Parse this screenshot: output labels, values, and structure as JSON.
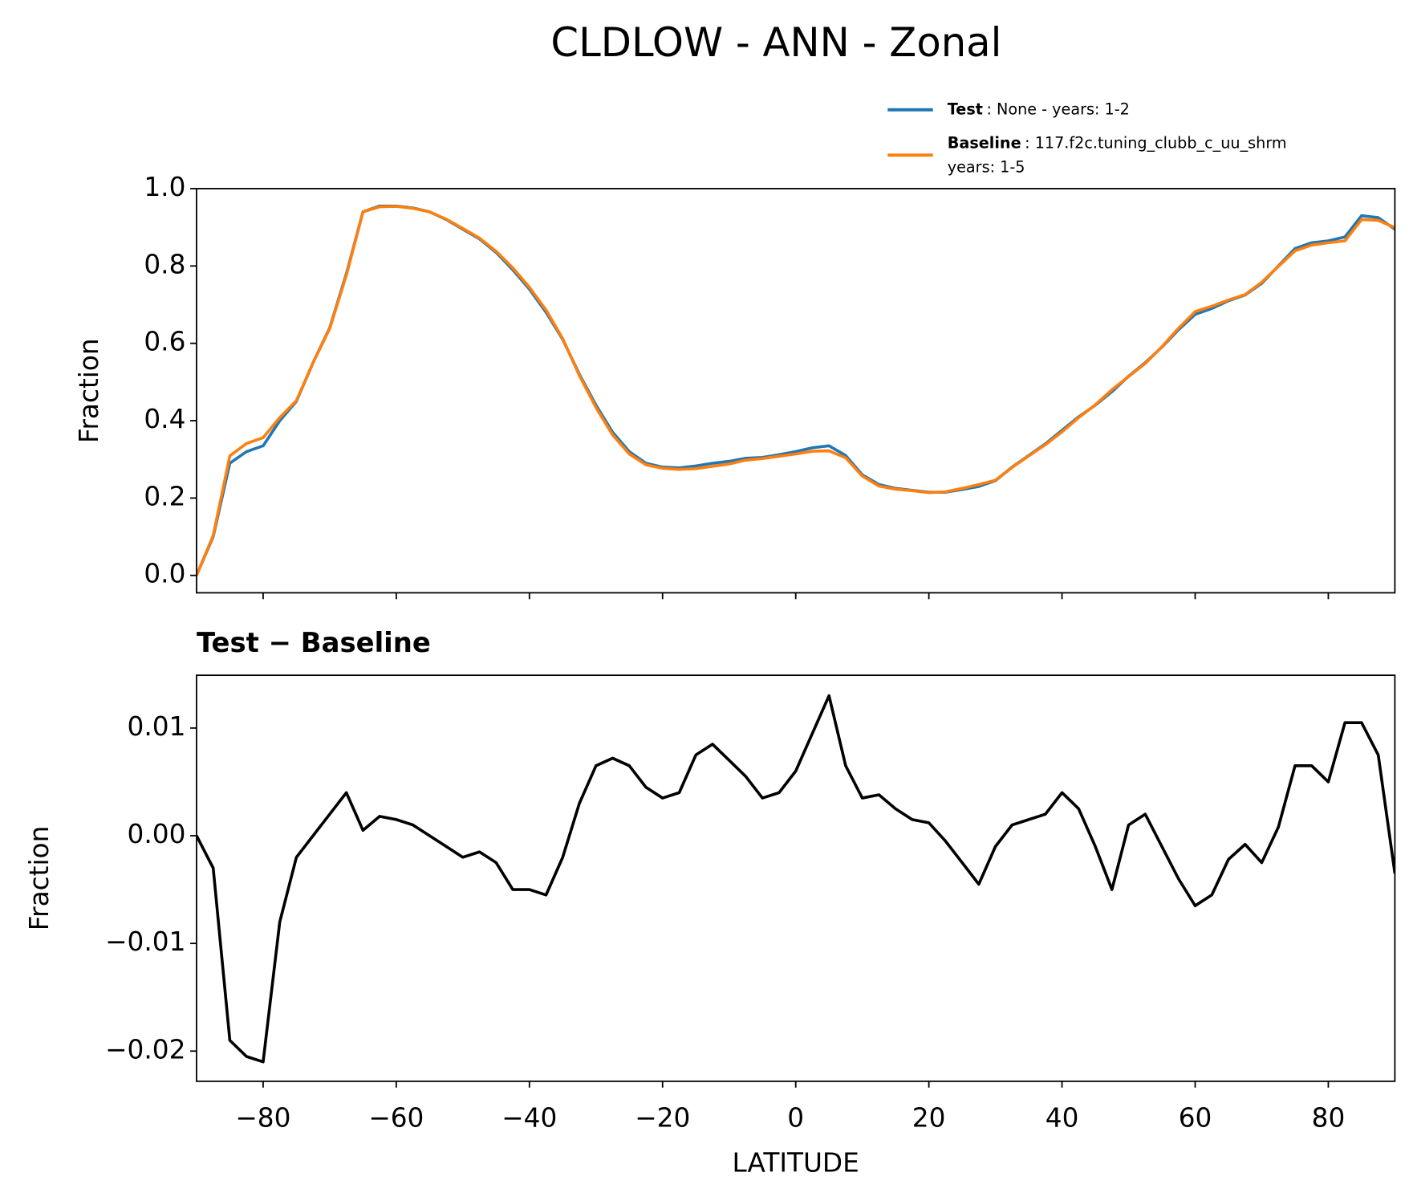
{
  "title": "CLDLOW - ANN - Zonal",
  "chart_data": [
    {
      "type": "line",
      "y_label": "Fraction",
      "x": [
        -90,
        -87.5,
        -85,
        -82.5,
        -80,
        -77.5,
        -75,
        -72.5,
        -70,
        -67.5,
        -65,
        -62.5,
        -60,
        -57.5,
        -55,
        -52.5,
        -50,
        -47.5,
        -45,
        -42.5,
        -40,
        -37.5,
        -35,
        -32.5,
        -30,
        -27.5,
        -25,
        -22.5,
        -20,
        -17.5,
        -15,
        -12.5,
        -10,
        -7.5,
        -5,
        -2.5,
        0,
        2.5,
        5,
        7.5,
        10,
        12.5,
        15,
        17.5,
        20,
        22.5,
        25,
        27.5,
        30,
        32.5,
        35,
        37.5,
        40,
        42.5,
        45,
        47.5,
        50,
        52.5,
        55,
        57.5,
        60,
        62.5,
        65,
        67.5,
        70,
        72.5,
        75,
        77.5,
        80,
        82.5,
        85,
        87.5,
        90
      ],
      "series": [
        {
          "name": "Test",
          "description": [
            ": None - years: 1-2"
          ],
          "color": "#1f77b4",
          "values": [
            0.0,
            0.1,
            0.29,
            0.32,
            0.335,
            0.4,
            0.45,
            0.55,
            0.64,
            0.78,
            0.94,
            0.955,
            0.955,
            0.95,
            0.94,
            0.92,
            0.895,
            0.87,
            0.835,
            0.79,
            0.74,
            0.68,
            0.61,
            0.52,
            0.44,
            0.37,
            0.32,
            0.29,
            0.28,
            0.278,
            0.283,
            0.29,
            0.295,
            0.303,
            0.305,
            0.312,
            0.32,
            0.33,
            0.335,
            0.31,
            0.26,
            0.235,
            0.225,
            0.22,
            0.215,
            0.215,
            0.222,
            0.23,
            0.245,
            0.28,
            0.31,
            0.34,
            0.375,
            0.41,
            0.44,
            0.475,
            0.515,
            0.55,
            0.59,
            0.635,
            0.675,
            0.69,
            0.71,
            0.725,
            0.755,
            0.8,
            0.845,
            0.86,
            0.865,
            0.875,
            0.93,
            0.925,
            0.895
          ]
        },
        {
          "name": "Baseline",
          "description": [
            ": 117.f2c.tuning_clubb_c_uu_shrm",
            "years: 1-5"
          ],
          "color": "#ff7f0e",
          "values": [
            0.0,
            0.103,
            0.309,
            0.341,
            0.356,
            0.408,
            0.452,
            0.55,
            0.638,
            0.776,
            0.94,
            0.953,
            0.954,
            0.949,
            0.94,
            0.921,
            0.897,
            0.872,
            0.838,
            0.795,
            0.745,
            0.686,
            0.612,
            0.517,
            0.434,
            0.363,
            0.314,
            0.286,
            0.277,
            0.274,
            0.276,
            0.282,
            0.288,
            0.298,
            0.302,
            0.308,
            0.314,
            0.321,
            0.322,
            0.304,
            0.257,
            0.231,
            0.223,
            0.219,
            0.214,
            0.216,
            0.225,
            0.235,
            0.246,
            0.279,
            0.309,
            0.338,
            0.371,
            0.408,
            0.441,
            0.48,
            0.514,
            0.548,
            0.591,
            0.639,
            0.682,
            0.696,
            0.712,
            0.726,
            0.758,
            0.799,
            0.839,
            0.854,
            0.86,
            0.865,
            0.92,
            0.918,
            0.899
          ]
        }
      ],
      "xlim": [
        -90,
        90
      ],
      "xticks": [
        -80,
        -60,
        -40,
        -20,
        0,
        20,
        40,
        60,
        80
      ],
      "xtick_labels": false,
      "ylim": [
        -0.045,
        1.0
      ],
      "yticks": [
        {
          "value": 0,
          "label": "0.0"
        },
        0.2,
        0.4,
        0.6,
        0.8,
        {
          "value": 1,
          "label": "1.0"
        }
      ],
      "legend": "upper right"
    },
    {
      "type": "line",
      "title": "Test − Baseline",
      "y_label": "Fraction",
      "x_label": "LATITUDE",
      "x": [
        -90,
        -87.5,
        -85,
        -82.5,
        -80,
        -77.5,
        -75,
        -72.5,
        -70,
        -67.5,
        -65,
        -62.5,
        -60,
        -57.5,
        -55,
        -52.5,
        -50,
        -47.5,
        -45,
        -42.5,
        -40,
        -37.5,
        -35,
        -32.5,
        -30,
        -27.5,
        -25,
        -22.5,
        -20,
        -17.5,
        -15,
        -12.5,
        -10,
        -7.5,
        -5,
        -2.5,
        0,
        2.5,
        5,
        7.5,
        10,
        12.5,
        15,
        17.5,
        20,
        22.5,
        25,
        27.5,
        30,
        32.5,
        35,
        37.5,
        40,
        42.5,
        45,
        47.5,
        50,
        52.5,
        55,
        57.5,
        60,
        62.5,
        65,
        67.5,
        70,
        72.5,
        75,
        77.5,
        80,
        82.5,
        85,
        87.5,
        90
      ],
      "series": [
        {
          "color": "#000000",
          "values": [
            0.0,
            -0.003,
            -0.019,
            -0.0205,
            -0.021,
            -0.008,
            -0.002,
            0.0,
            0.002,
            0.004,
            0.0005,
            0.0018,
            0.0015,
            0.001,
            0.0,
            -0.001,
            -0.002,
            -0.0015,
            -0.0025,
            -0.005,
            -0.005,
            -0.0055,
            -0.002,
            0.003,
            0.0065,
            0.0072,
            0.0065,
            0.0045,
            0.0035,
            0.004,
            0.0075,
            0.0085,
            0.007,
            0.0055,
            0.0035,
            0.004,
            0.006,
            0.0095,
            0.013,
            0.0065,
            0.0035,
            0.0038,
            0.0025,
            0.0015,
            0.0012,
            -0.0005,
            -0.0025,
            -0.0045,
            -0.001,
            0.001,
            0.0015,
            0.002,
            0.004,
            0.0025,
            -0.001,
            -0.005,
            0.001,
            0.002,
            -0.001,
            -0.004,
            -0.0065,
            -0.0055,
            -0.0022,
            -0.0008,
            -0.0025,
            0.0008,
            0.0065,
            0.0065,
            0.005,
            0.0105,
            0.0105,
            0.0075,
            -0.0035
          ]
        }
      ],
      "xlim": [
        -90,
        90
      ],
      "xticks": [
        {
          "value": -80,
          "label": "−80"
        },
        {
          "value": -60,
          "label": "−60"
        },
        {
          "value": -40,
          "label": "−40"
        },
        {
          "value": -20,
          "label": "−20"
        },
        0,
        20,
        40,
        60,
        80
      ],
      "ylim": [
        -0.0228,
        0.0149
      ],
      "yticks": [
        {
          "value": -0.02,
          "label": "−0.02"
        },
        {
          "value": -0.01,
          "label": "−0.01"
        },
        {
          "value": 0,
          "label": "0.00"
        },
        0.01
      ]
    }
  ]
}
